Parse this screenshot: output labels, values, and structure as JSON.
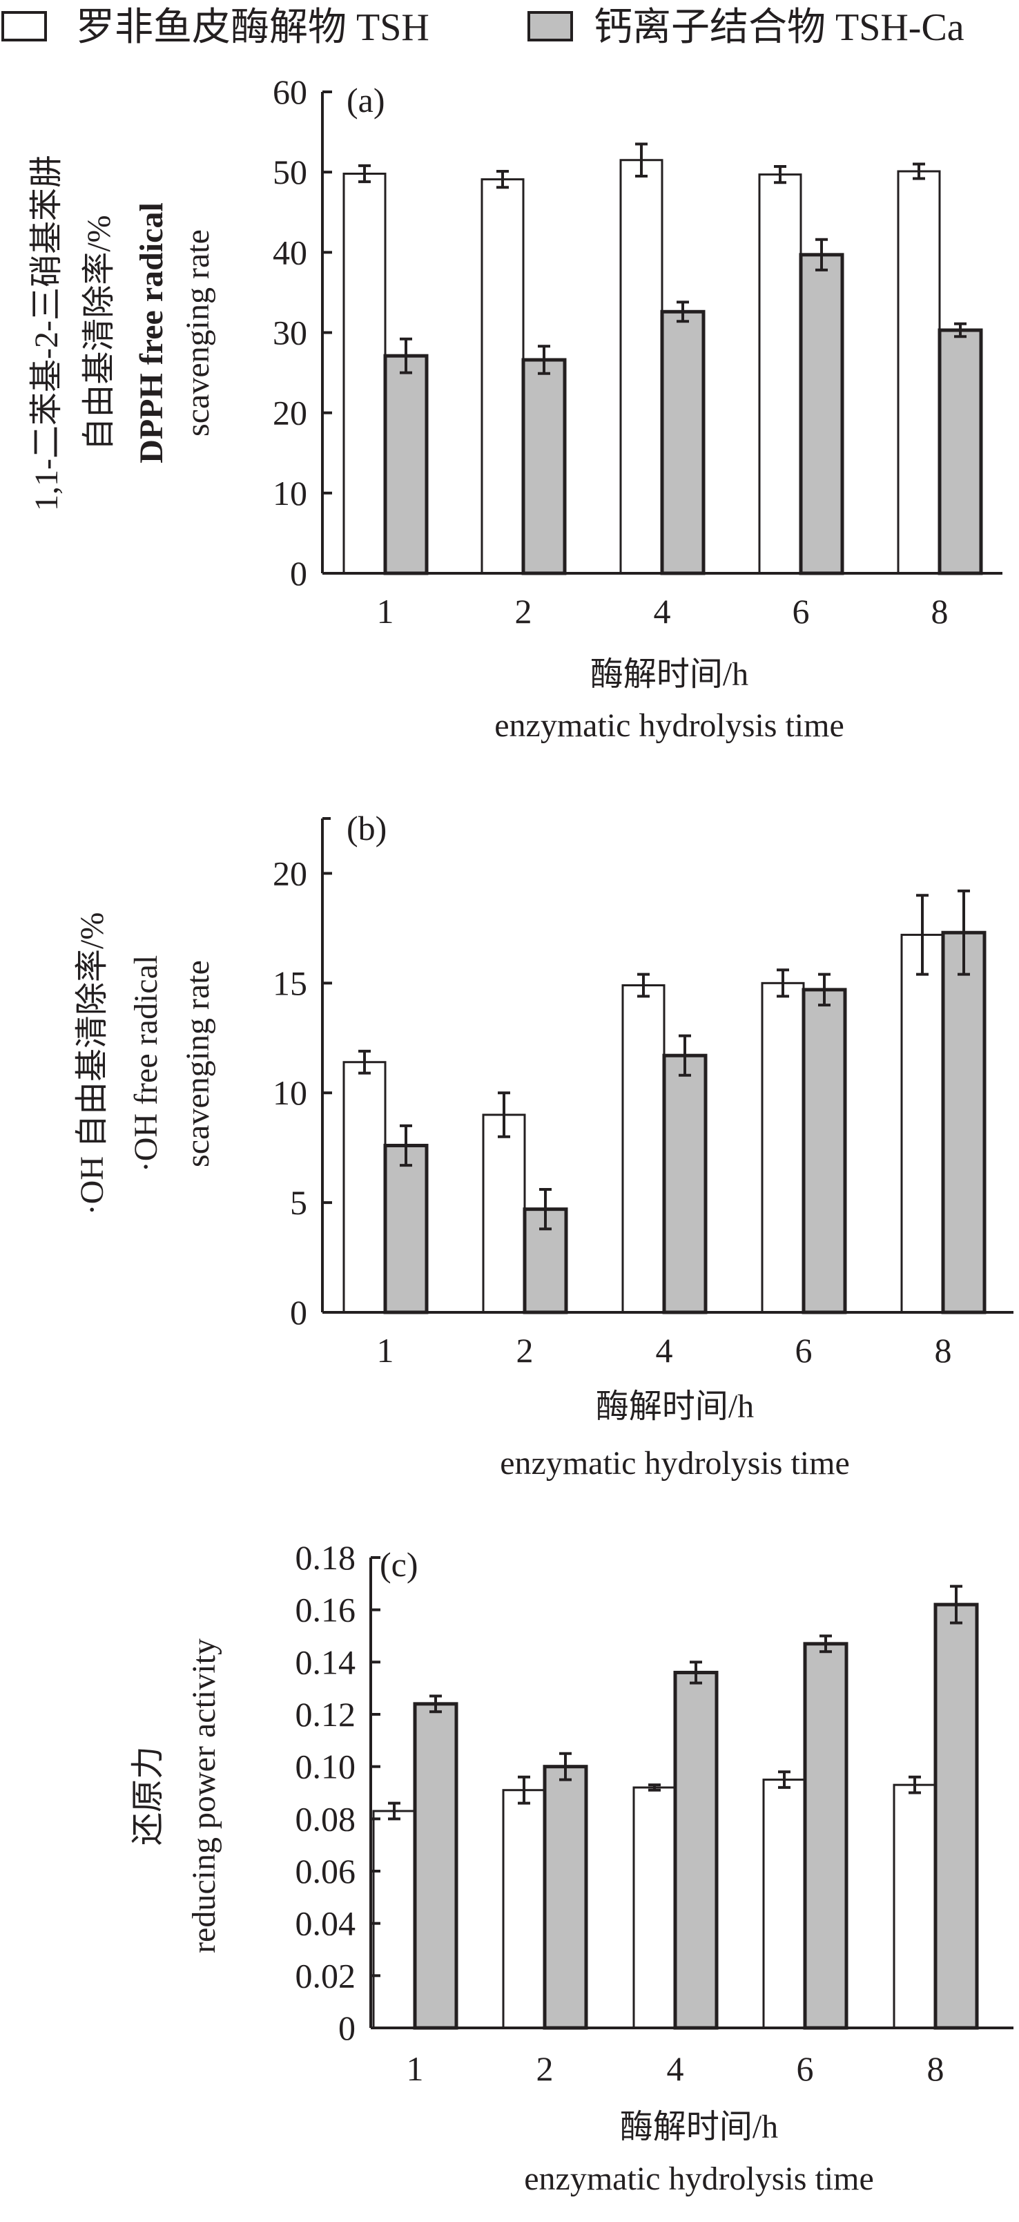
{
  "legend": {
    "items": [
      {
        "label": "罗非鱼皮酶解物 TSH",
        "color": "#ffffff"
      },
      {
        "label": "钙离子结合物 TSH-Ca",
        "color": "#bfbfbf"
      }
    ]
  },
  "chart_data": [
    {
      "type": "bar",
      "panel": "(a)",
      "categories": [
        "1",
        "2",
        "4",
        "6",
        "8"
      ],
      "series": [
        {
          "name": "罗非鱼皮酶解物 TSH",
          "values": [
            49.8,
            49.1,
            51.5,
            49.7,
            50.1
          ],
          "errors": [
            1.0,
            1.0,
            2.0,
            1.0,
            0.9
          ]
        },
        {
          "name": "钙离子结合物 TSH-Ca",
          "values": [
            27.1,
            26.6,
            32.6,
            39.7,
            30.3
          ],
          "errors": [
            2.1,
            1.7,
            1.2,
            1.9,
            0.8
          ]
        }
      ],
      "ylabel_lines": [
        "1,1-二苯基-2-三硝基苯肼",
        "自由基清除率/%",
        "DPPH free radical",
        "scavenging rate"
      ],
      "xlabel_lines": [
        "酶解时间/h",
        "enzymatic hydrolysis time"
      ],
      "ylim": [
        0,
        60
      ],
      "yticks": [
        "0",
        "10",
        "20",
        "30",
        "40",
        "50",
        "60"
      ],
      "ytick_values": [
        0,
        10,
        20,
        30,
        40,
        50,
        60
      ]
    },
    {
      "type": "bar",
      "panel": "(b)",
      "categories": [
        "1",
        "2",
        "4",
        "6",
        "8"
      ],
      "series": [
        {
          "name": "罗非鱼皮酶解物 TSH",
          "values": [
            11.4,
            9.0,
            14.9,
            15.0,
            17.2
          ],
          "errors": [
            0.5,
            1.0,
            0.5,
            0.6,
            1.8
          ]
        },
        {
          "name": "钙离子结合物 TSH-Ca",
          "values": [
            7.6,
            4.7,
            11.7,
            14.7,
            17.3
          ],
          "errors": [
            0.9,
            0.9,
            0.9,
            0.7,
            1.9
          ]
        }
      ],
      "ylabel_lines": [
        "·OH 自由基清除率/%",
        "·OH free radical",
        "scavenging rate"
      ],
      "xlabel_lines": [
        "酶解时间/h",
        "enzymatic hydrolysis time"
      ],
      "ylim": [
        0,
        22.5
      ],
      "yticks": [
        "0",
        "5",
        "10",
        "15",
        "20"
      ],
      "ytick_values": [
        0,
        5,
        10,
        15,
        20
      ]
    },
    {
      "type": "bar",
      "panel": "(c)",
      "categories": [
        "1",
        "2",
        "4",
        "6",
        "8"
      ],
      "series": [
        {
          "name": "罗非鱼皮酶解物 TSH",
          "values": [
            0.083,
            0.091,
            0.092,
            0.095,
            0.093
          ],
          "errors": [
            0.003,
            0.005,
            0.001,
            0.003,
            0.003
          ]
        },
        {
          "name": "钙离子结合物 TSH-Ca",
          "values": [
            0.124,
            0.1,
            0.136,
            0.147,
            0.162
          ],
          "errors": [
            0.003,
            0.005,
            0.004,
            0.003,
            0.007
          ]
        }
      ],
      "ylabel_lines": [
        "还原力",
        "reducing power activity"
      ],
      "xlabel_lines": [
        "酶解时间/h",
        "enzymatic hydrolysis time"
      ],
      "ylim": [
        0,
        0.18
      ],
      "yticks": [
        "0",
        "0.02",
        "0.04",
        "0.06",
        "0.08",
        "0.10",
        "0.12",
        "0.14",
        "0.16",
        "0.18"
      ],
      "ytick_values": [
        0,
        0.02,
        0.04,
        0.06,
        0.08,
        0.1,
        0.12,
        0.14,
        0.16,
        0.18
      ]
    }
  ]
}
